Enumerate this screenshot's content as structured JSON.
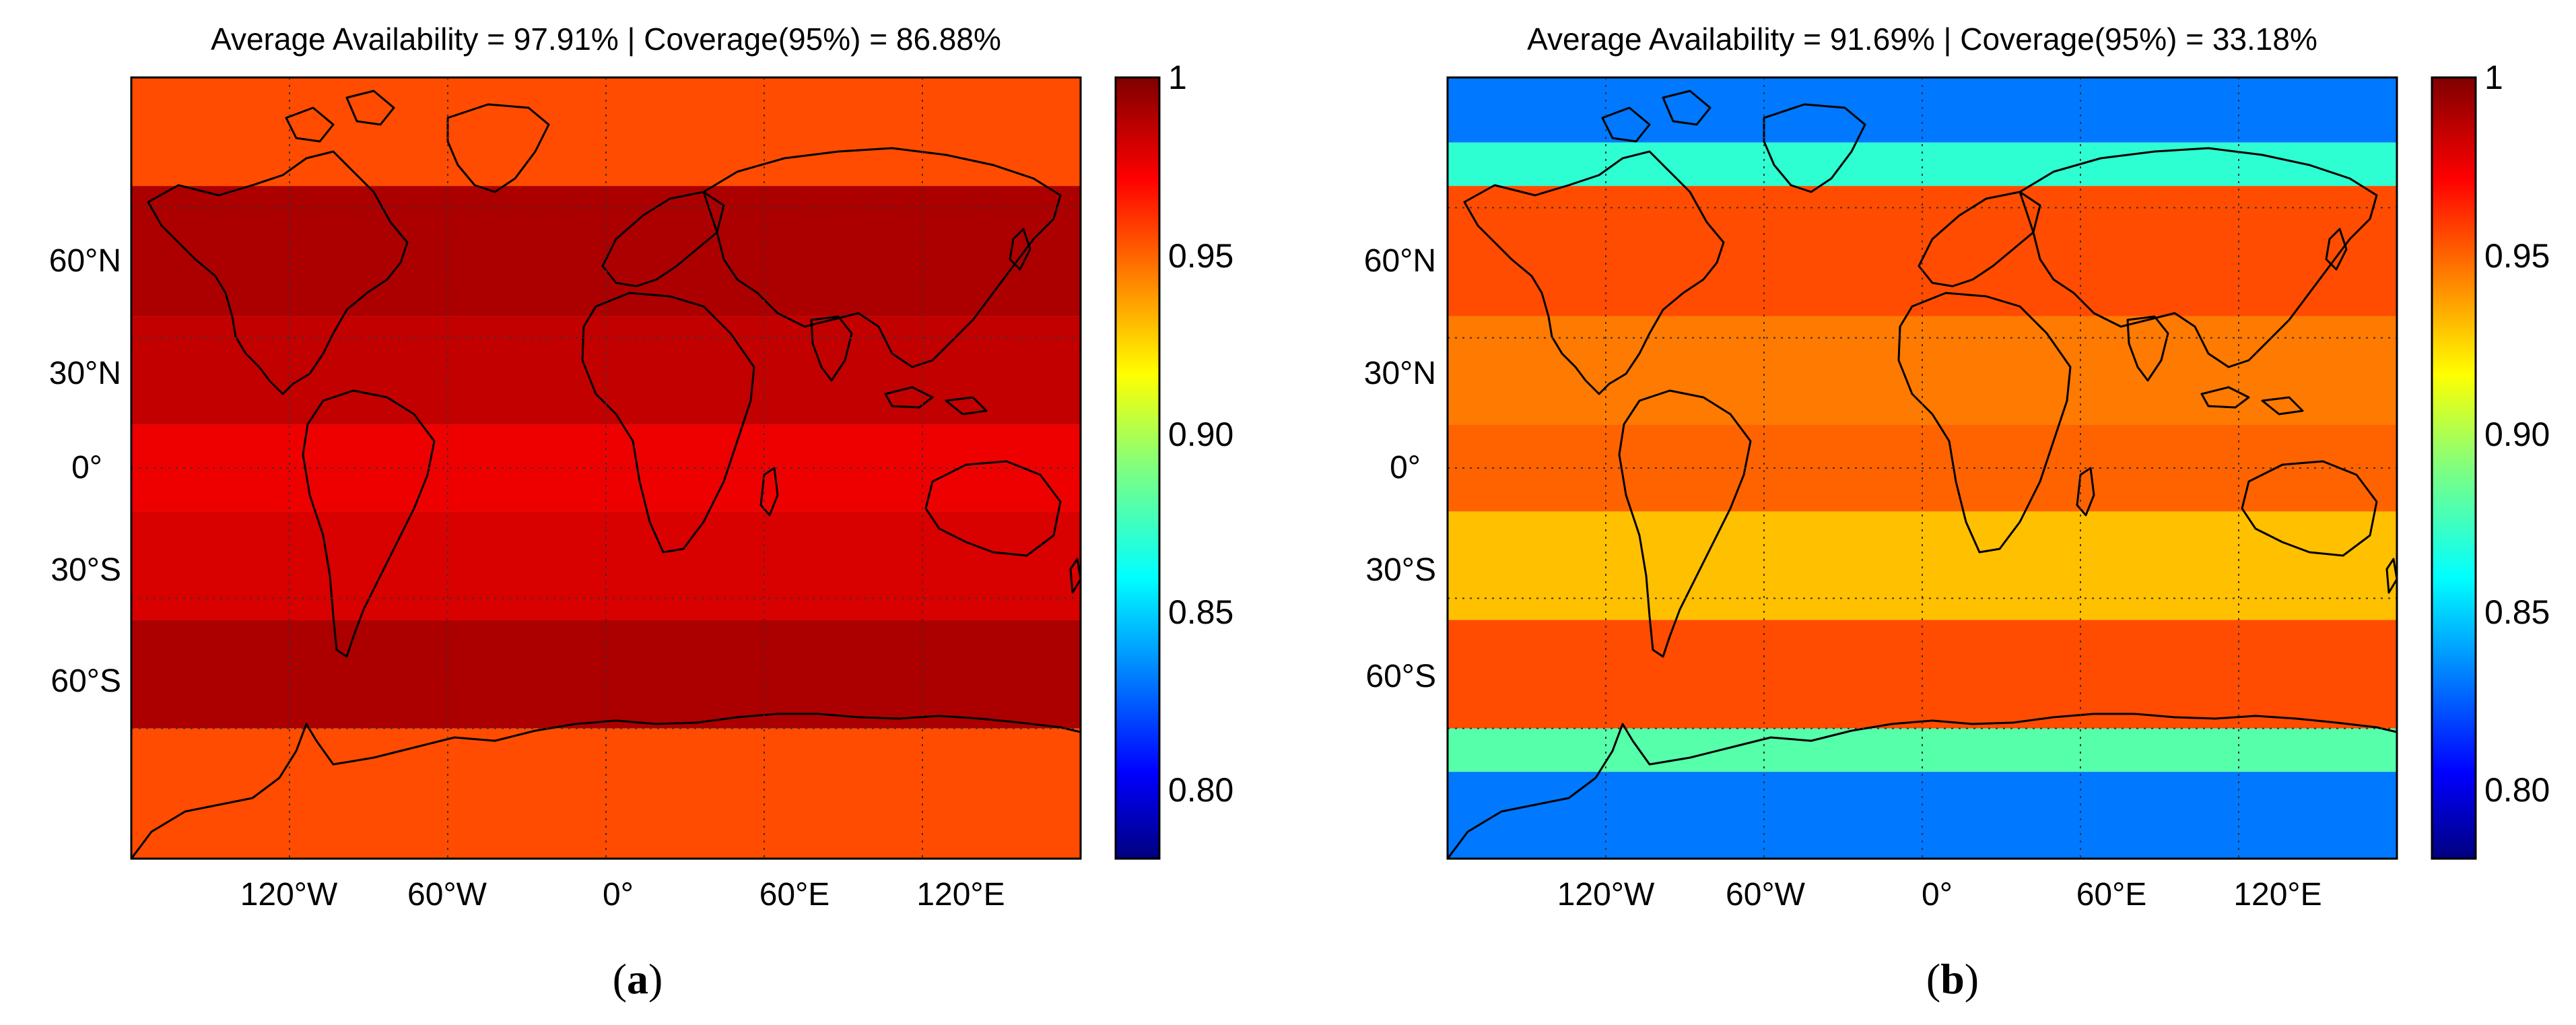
{
  "chart_data": [
    {
      "type": "heatmap",
      "panel_label": "(a)",
      "panel_letter": "a",
      "title": "Average Availability = 97.91% | Coverage(95%) = 86.88%",
      "average_availability_pct": 97.91,
      "coverage_95_pct": 86.88,
      "xlabel": "",
      "ylabel": "",
      "x_range": [
        -180,
        180
      ],
      "y_range": [
        -90,
        90
      ],
      "x_ticks": [
        {
          "value": -120,
          "label": "120°W"
        },
        {
          "value": -60,
          "label": "60°W"
        },
        {
          "value": 0,
          "label": "0°"
        },
        {
          "value": 60,
          "label": "60°E"
        },
        {
          "value": 120,
          "label": "120°E"
        }
      ],
      "y_ticks": [
        {
          "value": 60,
          "label": "60°N"
        },
        {
          "value": 30,
          "label": "30°N"
        },
        {
          "value": 0,
          "label": "0°"
        },
        {
          "value": -30,
          "label": "30°S"
        },
        {
          "value": -60,
          "label": "60°S"
        }
      ],
      "grid": true,
      "colorbar": {
        "range": [
          0.78,
          1.0
        ],
        "ticks": [
          {
            "value": 1.0,
            "label": "1"
          },
          {
            "value": 0.95,
            "label": "0.95"
          },
          {
            "value": 0.9,
            "label": "0.90"
          },
          {
            "value": 0.85,
            "label": "0.85"
          },
          {
            "value": 0.8,
            "label": "0.80"
          }
        ],
        "colormap": "jet"
      },
      "latitude_band_values": [
        {
          "lat_min": 65,
          "lat_max": 90,
          "value": 0.955
        },
        {
          "lat_min": 35,
          "lat_max": 65,
          "value": 0.99
        },
        {
          "lat_min": 10,
          "lat_max": 35,
          "value": 0.985
        },
        {
          "lat_min": -10,
          "lat_max": 10,
          "value": 0.975
        },
        {
          "lat_min": -35,
          "lat_max": -10,
          "value": 0.98
        },
        {
          "lat_min": -60,
          "lat_max": -35,
          "value": 0.99
        },
        {
          "lat_min": -90,
          "lat_max": -60,
          "value": 0.955
        }
      ]
    },
    {
      "type": "heatmap",
      "panel_label": "(b)",
      "panel_letter": "b",
      "title": "Average Availability = 91.69% | Coverage(95%) = 33.18%",
      "average_availability_pct": 91.69,
      "coverage_95_pct": 33.18,
      "xlabel": "",
      "ylabel": "",
      "x_range": [
        -180,
        180
      ],
      "y_range": [
        -90,
        90
      ],
      "x_ticks": [
        {
          "value": -120,
          "label": "120°W"
        },
        {
          "value": -60,
          "label": "60°W"
        },
        {
          "value": 0,
          "label": "0°"
        },
        {
          "value": 60,
          "label": "60°E"
        },
        {
          "value": 120,
          "label": "120°E"
        }
      ],
      "y_ticks": [
        {
          "value": 60,
          "label": "60°N"
        },
        {
          "value": 30,
          "label": "30°N"
        },
        {
          "value": 0,
          "label": "0°"
        },
        {
          "value": -30,
          "label": "30°S"
        },
        {
          "value": -60,
          "label": "60°S"
        }
      ],
      "grid": true,
      "colorbar": {
        "range": [
          0.78,
          1.0
        ],
        "ticks": [
          {
            "value": 1.0,
            "label": "1"
          },
          {
            "value": 0.95,
            "label": "0.95"
          },
          {
            "value": 0.9,
            "label": "0.90"
          },
          {
            "value": 0.85,
            "label": "0.85"
          },
          {
            "value": 0.8,
            "label": "0.80"
          }
        ],
        "colormap": "jet"
      },
      "latitude_band_values": [
        {
          "lat_min": 75,
          "lat_max": 90,
          "value": 0.83
        },
        {
          "lat_min": 65,
          "lat_max": 75,
          "value": 0.87
        },
        {
          "lat_min": 35,
          "lat_max": 65,
          "value": 0.955
        },
        {
          "lat_min": 10,
          "lat_max": 35,
          "value": 0.945
        },
        {
          "lat_min": -10,
          "lat_max": 10,
          "value": 0.95
        },
        {
          "lat_min": -35,
          "lat_max": -10,
          "value": 0.93
        },
        {
          "lat_min": -60,
          "lat_max": -35,
          "value": 0.955
        },
        {
          "lat_min": -70,
          "lat_max": -60,
          "value": 0.88
        },
        {
          "lat_min": -90,
          "lat_max": -70,
          "value": 0.83
        }
      ]
    }
  ]
}
